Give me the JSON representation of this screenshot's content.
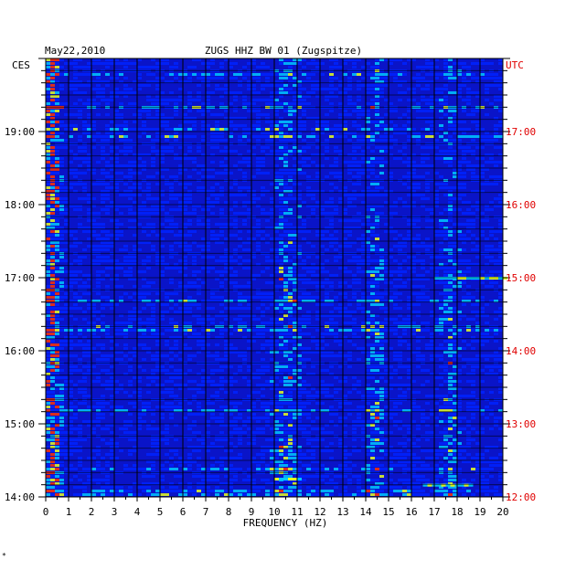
{
  "chart_data": {
    "type": "heatmap",
    "title": "ZUGS HHZ BW 01 (Zugspitze)",
    "date": "May22,2010",
    "xlabel": "FREQUENCY (HZ)",
    "xlim": [
      0,
      20
    ],
    "x_ticks": [
      "0",
      "1",
      "2",
      "3",
      "4",
      "5",
      "6",
      "7",
      "8",
      "9",
      "10",
      "11",
      "12",
      "13",
      "14",
      "15",
      "16",
      "17",
      "18",
      "19",
      "20"
    ],
    "left_axis": {
      "label": "CES",
      "ticks": [
        "19:00",
        "18:00",
        "17:00",
        "16:00",
        "15:00",
        "14:00"
      ],
      "hours": [
        19,
        18,
        17,
        16,
        15,
        14
      ]
    },
    "right_axis": {
      "label": "UTC",
      "ticks": [
        "17:00",
        "16:00",
        "15:00",
        "14:00",
        "13:00",
        "12:00"
      ],
      "hours": [
        17,
        16,
        15,
        14,
        13,
        12
      ]
    },
    "time_range_hours": [
      14,
      20
    ],
    "grid": true,
    "colors": {
      "background": "#0a14c8",
      "low": "#0022ff",
      "mid": "#00c8ff",
      "high": "#e8ff20",
      "peak": "#ff3000",
      "grid": "#000000",
      "utc_text": "#e00000"
    },
    "energy_bands_hz": [
      {
        "freq": 0.2,
        "strength": 0.9
      },
      {
        "freq": 10.2,
        "strength": 0.55
      },
      {
        "freq": 10.7,
        "strength": 0.45
      },
      {
        "freq": 14.3,
        "strength": 0.6
      },
      {
        "freq": 17.6,
        "strength": 0.5
      }
    ],
    "bright_events_ces": [
      {
        "time": "17:00",
        "band": [
          17,
          20
        ],
        "note": ""
      },
      {
        "time": "14:15",
        "band": [
          10,
          11
        ],
        "note": ""
      },
      {
        "time": "14:10",
        "band": [
          16.5,
          18.5
        ],
        "note": ""
      }
    ]
  },
  "footnote": "*"
}
